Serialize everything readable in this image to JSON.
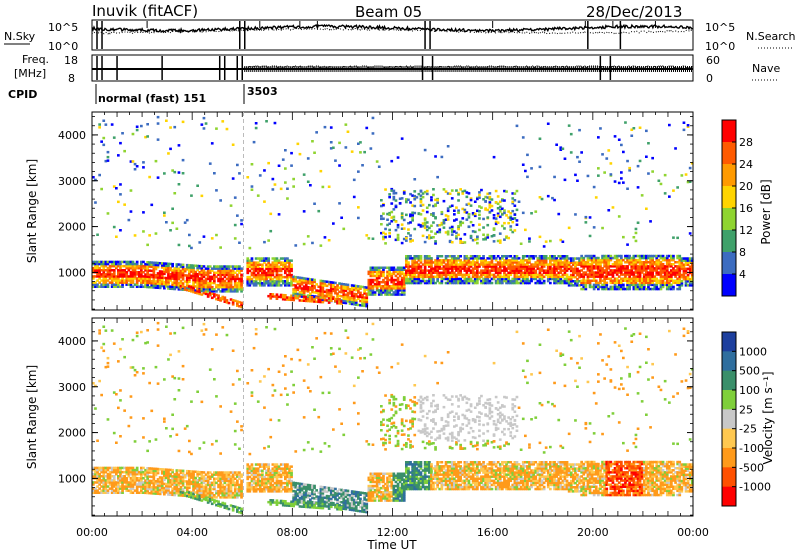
{
  "header": {
    "station": "Inuvik (fitACF)",
    "beam": "Beam 05",
    "date": "28/Dec/2013"
  },
  "noise_panel": {
    "left_label": "N.Sky",
    "right_label": "N.Search",
    "yticks_left": [
      "10^5",
      "10^0"
    ],
    "yticks_right": [
      "10^5",
      "10^0"
    ]
  },
  "freq_panel": {
    "left_label_top": "Freq.",
    "left_label_bottom": "[MHz]",
    "yticks_left": [
      "18",
      "8"
    ],
    "yticks_right": [
      "60",
      "0"
    ],
    "right_label": "Nave"
  },
  "cpid": {
    "label": "CPID",
    "segments": [
      {
        "name": "normal (fast) 151",
        "start_hour": 0
      },
      {
        "name": "3503",
        "start_hour": 6.1
      }
    ]
  },
  "chart_data": [
    {
      "type": "heatmap",
      "quantity": "Power",
      "xlabel": "",
      "ylabel": "Slant Range [km]",
      "x_range_hours": [
        0,
        24
      ],
      "ylim": [
        180,
        4500
      ],
      "yticks": [
        "1000",
        "2000",
        "3000",
        "4000"
      ],
      "colorbar": {
        "label": "Power [dB]",
        "ticks": [
          "28",
          "24",
          "20",
          "16",
          "12",
          "8",
          "4"
        ],
        "colors": [
          "#ff0000",
          "#ff5a00",
          "#ff9a00",
          "#ffd400",
          "#8fd430",
          "#3fa16a",
          "#3c6cc0",
          "#0000ff"
        ]
      }
    },
    {
      "type": "heatmap",
      "quantity": "Velocity",
      "xlabel": "Time UT",
      "ylabel": "Slant Range [km]",
      "x_range_hours": [
        0,
        24
      ],
      "ylim": [
        180,
        4500
      ],
      "yticks": [
        "1000",
        "2000",
        "3000",
        "4000"
      ],
      "xticks": [
        "00:00",
        "04:00",
        "08:00",
        "12:00",
        "16:00",
        "20:00",
        "00:00"
      ],
      "colorbar": {
        "label": "Velocity [m s⁻¹]",
        "ticks": [
          "1000",
          "500",
          "100",
          "25",
          "-25",
          "-100",
          "-500",
          "-1000"
        ],
        "colors": [
          "#1d3f9e",
          "#2f6e9e",
          "#3a8f6a",
          "#7fcf3a",
          "#c8c8c8",
          "#ffc850",
          "#ff9a1a",
          "#ff5000",
          "#ff0000"
        ]
      }
    }
  ]
}
